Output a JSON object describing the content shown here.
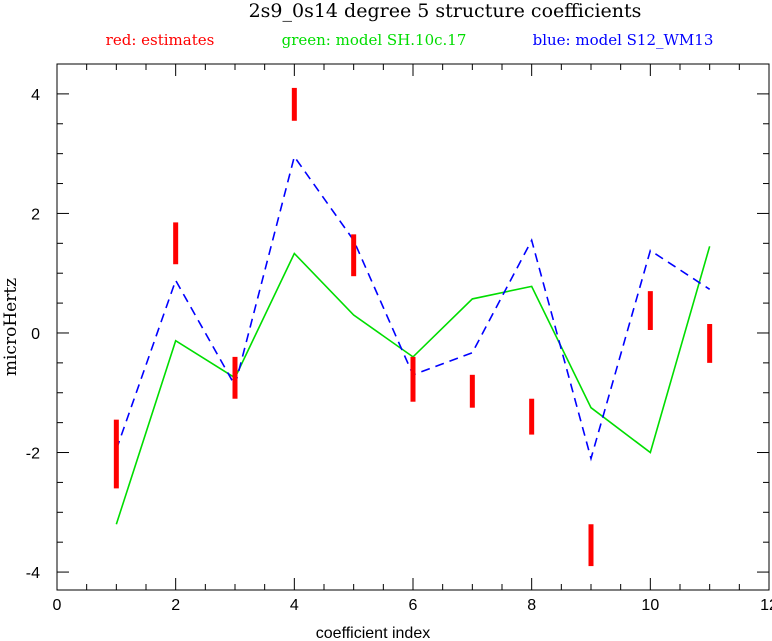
{
  "chart_data": {
    "type": "line",
    "title": "2s9_0s14 degree 5 structure coefficients",
    "xlabel": "coefficient index",
    "ylabel": "microHertz",
    "xlim": [
      0,
      12
    ],
    "ylim": [
      -4.3,
      4.5
    ],
    "x_ticks": [
      0,
      2,
      4,
      6,
      8,
      10,
      12
    ],
    "y_ticks": [
      -4,
      -2,
      0,
      2,
      4
    ],
    "legend": [
      {
        "label": "red: estimates",
        "color": "#ff0000"
      },
      {
        "label": "green: model SH.10c.17",
        "color": "#00dd00"
      },
      {
        "label": "blue: model S12_WM13",
        "color": "#0000ff"
      }
    ],
    "x": [
      1,
      2,
      3,
      4,
      5,
      6,
      7,
      8,
      9,
      10,
      11
    ],
    "series": [
      {
        "name": "model SH.10c.17",
        "color": "#00dd00",
        "style": "solid",
        "values": [
          -3.2,
          -0.13,
          -0.75,
          1.33,
          0.3,
          -0.4,
          0.57,
          0.78,
          -1.25,
          -2.0,
          1.45
        ]
      },
      {
        "name": "model S12_WM13",
        "color": "#0000ff",
        "style": "dashed",
        "values": [
          -1.95,
          0.88,
          -0.88,
          2.95,
          1.55,
          -0.7,
          -0.33,
          1.55,
          -2.1,
          1.38,
          0.73
        ]
      }
    ],
    "estimates": {
      "name": "estimates",
      "color": "#ff0000",
      "lows": [
        -2.6,
        1.15,
        -1.1,
        3.55,
        0.95,
        -1.15,
        -1.25,
        -1.7,
        -3.9,
        0.05,
        -0.5
      ],
      "highs": [
        -1.45,
        1.85,
        -0.4,
        4.1,
        1.65,
        -0.4,
        -0.7,
        -1.1,
        -3.2,
        0.7,
        0.15
      ]
    }
  }
}
